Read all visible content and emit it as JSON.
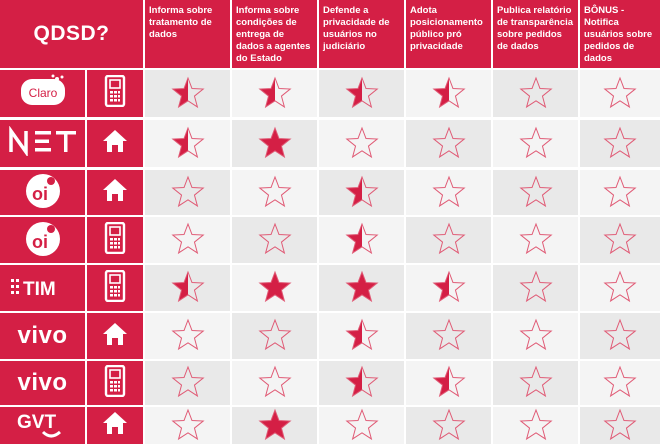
{
  "title": "QDSD?",
  "criteria": [
    "Informa sobre tratamento de dados",
    "Informa sobre condições de entrega de dados a agentes do Estado",
    "Defende a privacidade de usuários no judiciário",
    "Adota posicionamento público pró privacidade",
    "Publica relatório de transparência sobre pedidos de dados",
    "BÔNUS - Notifica usuários sobre pedidos de dados"
  ],
  "companies": [
    {
      "name": "Claro",
      "logo": "claro-logo",
      "service": "mobile",
      "icon": "mobile-phone-icon",
      "ratings": [
        0.5,
        0.5,
        0.5,
        0.5,
        0,
        0
      ]
    },
    {
      "name": "NET",
      "logo": "net-logo",
      "service": "home",
      "icon": "home-icon",
      "ratings": [
        0.5,
        1,
        0,
        0,
        0,
        0
      ]
    },
    {
      "name": "oi",
      "logo": "oi-logo",
      "service": "home",
      "icon": "home-icon",
      "ratings": [
        0,
        0,
        0.5,
        0,
        0,
        0
      ]
    },
    {
      "name": "oi",
      "logo": "oi-logo",
      "service": "mobile",
      "icon": "mobile-phone-icon",
      "ratings": [
        0,
        0,
        0.5,
        0,
        0,
        0
      ]
    },
    {
      "name": "TIM",
      "logo": "tim-logo",
      "service": "mobile",
      "icon": "mobile-phone-icon",
      "ratings": [
        0.5,
        1,
        1,
        0.5,
        0,
        0
      ]
    },
    {
      "name": "vivo",
      "logo": "vivo-logo",
      "service": "home",
      "icon": "home-icon",
      "ratings": [
        0,
        0,
        0.5,
        0,
        0,
        0
      ]
    },
    {
      "name": "vivo",
      "logo": "vivo-logo",
      "service": "mobile",
      "icon": "mobile-phone-icon",
      "ratings": [
        0,
        0,
        0.5,
        0.5,
        0,
        0
      ]
    },
    {
      "name": "GVT",
      "logo": "gvt-logo",
      "service": "home",
      "icon": "home-icon",
      "ratings": [
        0,
        1,
        0,
        0,
        0,
        0
      ]
    }
  ],
  "colors": {
    "brand": "#d41f45",
    "star_fill": "#d41f45",
    "star_outline": "#e05a75",
    "cell_bg": "#ececec"
  }
}
